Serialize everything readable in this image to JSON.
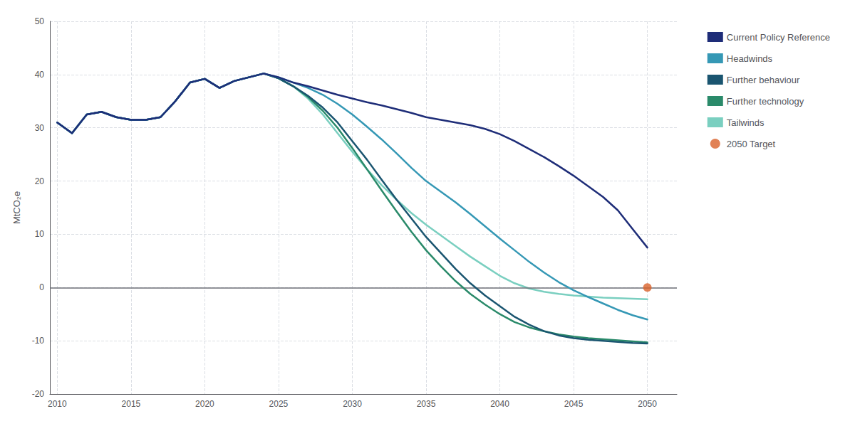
{
  "chart_data": {
    "type": "line",
    "y_label": "MtCO₂e",
    "xlim": [
      2009.5,
      2052
    ],
    "ylim": [
      -20,
      50
    ],
    "xticks": [
      2010,
      2015,
      2020,
      2025,
      2030,
      2035,
      2040,
      2045,
      2050
    ],
    "yticks": [
      -20,
      -10,
      0,
      10,
      20,
      30,
      40,
      50
    ],
    "grid": true,
    "legend": "right",
    "x": [
      2010,
      2011,
      2012,
      2013,
      2014,
      2015,
      2016,
      2017,
      2018,
      2019,
      2020,
      2021,
      2022,
      2023,
      2024,
      2025,
      2026,
      2027,
      2028,
      2029,
      2030,
      2031,
      2032,
      2033,
      2034,
      2035,
      2036,
      2037,
      2038,
      2039,
      2040,
      2041,
      2042,
      2043,
      2044,
      2045,
      2046,
      2047,
      2048,
      2049,
      2050
    ],
    "series": [
      {
        "name": "Current Policy Reference",
        "color": "#1e2d78",
        "values": [
          31.0,
          29.0,
          32.5,
          33.0,
          32.0,
          31.5,
          31.5,
          32.0,
          35.0,
          38.5,
          39.2,
          37.5,
          38.8,
          39.5,
          40.2,
          39.5,
          38.5,
          37.8,
          37.0,
          36.2,
          35.5,
          34.8,
          34.2,
          33.5,
          32.8,
          32.0,
          31.5,
          31.0,
          30.5,
          29.8,
          28.8,
          27.5,
          26.0,
          24.5,
          22.8,
          21.0,
          19.0,
          17.0,
          14.5,
          11.0,
          7.5
        ]
      },
      {
        "name": "Headwinds",
        "color": "#3598b5",
        "values": [
          31.0,
          29.0,
          32.5,
          33.0,
          32.0,
          31.5,
          31.5,
          32.0,
          35.0,
          38.5,
          39.2,
          37.5,
          38.8,
          39.5,
          40.2,
          39.5,
          38.5,
          37.5,
          36.2,
          34.5,
          32.5,
          30.2,
          27.8,
          25.2,
          22.5,
          20.0,
          18.0,
          16.0,
          13.8,
          11.5,
          9.2,
          7.0,
          4.8,
          2.8,
          1.0,
          -0.5,
          -1.8,
          -3.0,
          -4.2,
          -5.2,
          -6.0
        ]
      },
      {
        "name": "Further behaviour",
        "color": "#1a5570",
        "values": [
          31.0,
          29.0,
          32.5,
          33.0,
          32.0,
          31.5,
          31.5,
          32.0,
          35.0,
          38.5,
          39.2,
          37.5,
          38.8,
          39.5,
          40.2,
          39.3,
          37.8,
          36.0,
          33.8,
          31.0,
          27.5,
          24.0,
          20.2,
          16.5,
          13.0,
          9.5,
          6.5,
          3.5,
          0.8,
          -1.5,
          -3.5,
          -5.5,
          -7.0,
          -8.2,
          -9.0,
          -9.5,
          -9.8,
          -10.0,
          -10.2,
          -10.4,
          -10.5
        ]
      },
      {
        "name": "Further technology",
        "color": "#2a8a6a",
        "values": [
          31.0,
          29.0,
          32.5,
          33.0,
          32.0,
          31.5,
          31.5,
          32.0,
          35.0,
          38.5,
          39.2,
          37.5,
          38.8,
          39.5,
          40.2,
          39.3,
          37.8,
          35.8,
          33.2,
          30.0,
          26.2,
          22.2,
          18.2,
          14.3,
          10.5,
          7.0,
          4.0,
          1.2,
          -1.2,
          -3.2,
          -5.0,
          -6.5,
          -7.5,
          -8.2,
          -8.8,
          -9.2,
          -9.5,
          -9.7,
          -9.9,
          -10.1,
          -10.3
        ]
      },
      {
        "name": "Tailwinds",
        "color": "#7acfc0",
        "values": [
          31.0,
          29.0,
          32.5,
          33.0,
          32.0,
          31.5,
          31.5,
          32.0,
          35.0,
          38.5,
          39.2,
          37.5,
          38.8,
          39.5,
          40.2,
          39.3,
          37.8,
          35.5,
          32.5,
          29.0,
          25.5,
          22.2,
          19.2,
          16.5,
          14.0,
          11.8,
          9.8,
          7.8,
          5.8,
          4.0,
          2.2,
          0.8,
          -0.2,
          -0.8,
          -1.2,
          -1.5,
          -1.7,
          -1.9,
          -2.0,
          -2.1,
          -2.2
        ]
      },
      {
        "name": "2050 Target",
        "type": "scatter",
        "marker": "circle",
        "color": "#d9622b",
        "x": [
          2050
        ],
        "values": [
          0
        ]
      }
    ]
  }
}
